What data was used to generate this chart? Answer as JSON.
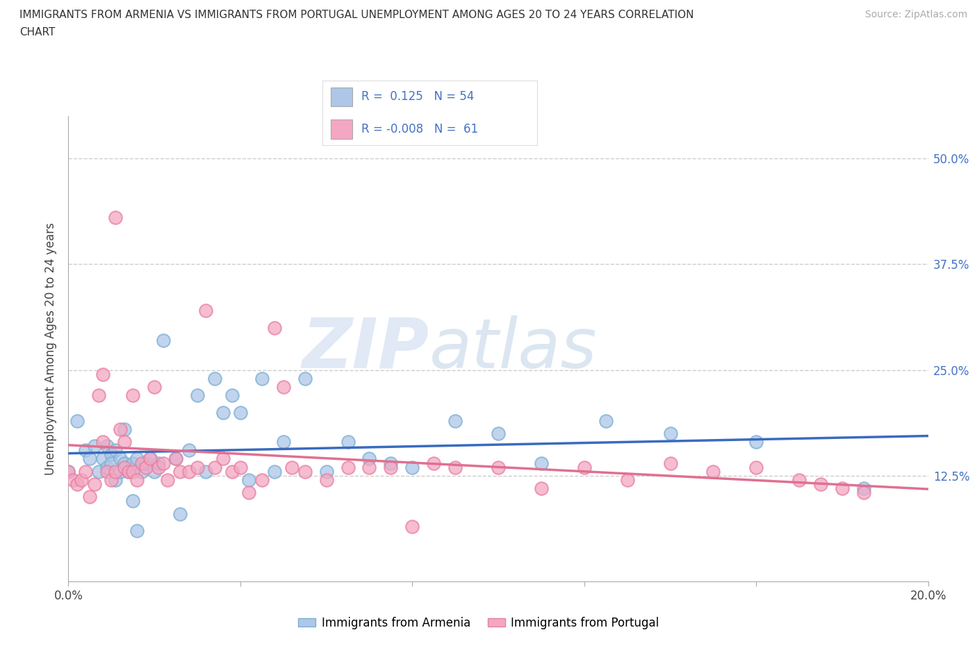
{
  "title_line1": "IMMIGRANTS FROM ARMENIA VS IMMIGRANTS FROM PORTUGAL UNEMPLOYMENT AMONG AGES 20 TO 24 YEARS CORRELATION",
  "title_line2": "CHART",
  "source": "Source: ZipAtlas.com",
  "ylabel": "Unemployment Among Ages 20 to 24 years",
  "xlim": [
    0.0,
    0.2
  ],
  "ylim": [
    0.0,
    0.55
  ],
  "ytick_positions": [
    0.0,
    0.125,
    0.25,
    0.375,
    0.5
  ],
  "yticklabels_right": [
    "",
    "12.5%",
    "25.0%",
    "37.5%",
    "50.0%"
  ],
  "armenia_color": "#aec6e8",
  "portugal_color": "#f4a7c3",
  "armenia_edge_color": "#7bafd4",
  "portugal_edge_color": "#e87fa0",
  "armenia_line_color": "#3a6bbf",
  "portugal_line_color": "#e07090",
  "R_armenia": 0.125,
  "N_armenia": 54,
  "R_portugal": -0.008,
  "N_portugal": 61,
  "legend_label_armenia": "Immigrants from Armenia",
  "legend_label_portugal": "Immigrants from Portugal",
  "watermark_zip": "ZIP",
  "watermark_atlas": "atlas",
  "armenia_scatter_x": [
    0.0,
    0.002,
    0.004,
    0.005,
    0.006,
    0.007,
    0.008,
    0.009,
    0.009,
    0.01,
    0.01,
    0.011,
    0.011,
    0.012,
    0.012,
    0.013,
    0.013,
    0.014,
    0.015,
    0.015,
    0.016,
    0.016,
    0.017,
    0.018,
    0.019,
    0.02,
    0.021,
    0.022,
    0.025,
    0.026,
    0.028,
    0.03,
    0.032,
    0.034,
    0.036,
    0.038,
    0.04,
    0.042,
    0.045,
    0.048,
    0.05,
    0.055,
    0.06,
    0.065,
    0.07,
    0.075,
    0.08,
    0.09,
    0.1,
    0.11,
    0.125,
    0.14,
    0.16,
    0.185
  ],
  "armenia_scatter_y": [
    0.13,
    0.19,
    0.155,
    0.145,
    0.16,
    0.13,
    0.145,
    0.16,
    0.135,
    0.15,
    0.14,
    0.155,
    0.12,
    0.13,
    0.145,
    0.14,
    0.18,
    0.13,
    0.095,
    0.14,
    0.145,
    0.06,
    0.13,
    0.14,
    0.145,
    0.13,
    0.14,
    0.285,
    0.145,
    0.08,
    0.155,
    0.22,
    0.13,
    0.24,
    0.2,
    0.22,
    0.2,
    0.12,
    0.24,
    0.13,
    0.165,
    0.24,
    0.13,
    0.165,
    0.145,
    0.14,
    0.135,
    0.19,
    0.175,
    0.14,
    0.19,
    0.175,
    0.165,
    0.11
  ],
  "portugal_scatter_x": [
    0.0,
    0.001,
    0.002,
    0.003,
    0.004,
    0.005,
    0.006,
    0.007,
    0.008,
    0.008,
    0.009,
    0.01,
    0.011,
    0.011,
    0.012,
    0.013,
    0.013,
    0.014,
    0.015,
    0.015,
    0.016,
    0.017,
    0.018,
    0.019,
    0.02,
    0.021,
    0.022,
    0.023,
    0.025,
    0.026,
    0.028,
    0.03,
    0.032,
    0.034,
    0.036,
    0.038,
    0.04,
    0.042,
    0.045,
    0.048,
    0.05,
    0.052,
    0.055,
    0.06,
    0.065,
    0.07,
    0.075,
    0.08,
    0.085,
    0.09,
    0.1,
    0.11,
    0.12,
    0.13,
    0.14,
    0.15,
    0.16,
    0.17,
    0.175,
    0.18,
    0.185
  ],
  "portugal_scatter_y": [
    0.13,
    0.12,
    0.115,
    0.12,
    0.13,
    0.1,
    0.115,
    0.22,
    0.165,
    0.245,
    0.13,
    0.12,
    0.13,
    0.43,
    0.18,
    0.135,
    0.165,
    0.13,
    0.13,
    0.22,
    0.12,
    0.14,
    0.135,
    0.145,
    0.23,
    0.135,
    0.14,
    0.12,
    0.145,
    0.13,
    0.13,
    0.135,
    0.32,
    0.135,
    0.145,
    0.13,
    0.135,
    0.105,
    0.12,
    0.3,
    0.23,
    0.135,
    0.13,
    0.12,
    0.135,
    0.135,
    0.135,
    0.065,
    0.14,
    0.135,
    0.135,
    0.11,
    0.135,
    0.12,
    0.14,
    0.13,
    0.135,
    0.12,
    0.115,
    0.11,
    0.105
  ]
}
